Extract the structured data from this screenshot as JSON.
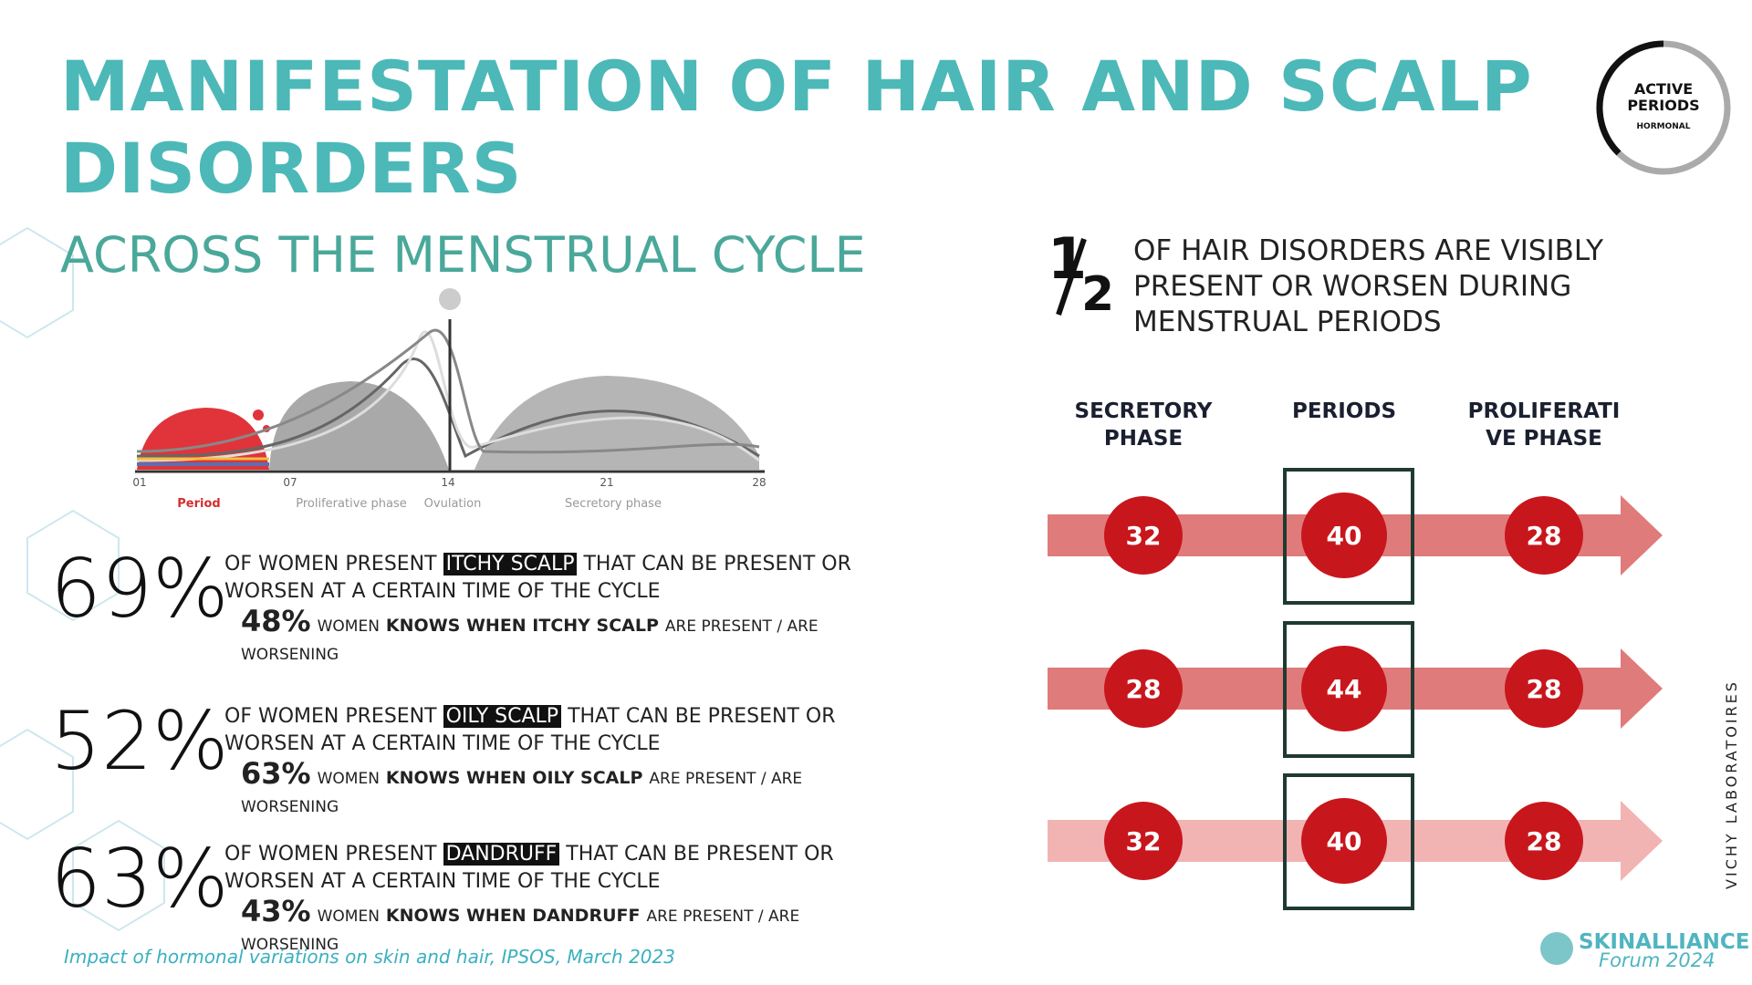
{
  "title": [
    "MANIFESTATION OF HAIR AND SCALP",
    "DISORDERS"
  ],
  "subtitle": "ACROSS THE MENSTRUAL CYCLE",
  "badge": [
    "ACTIVE",
    "PERIODS",
    "HORMONAL"
  ],
  "cycle": {
    "days": [
      "01",
      "07",
      "14",
      "21",
      "28"
    ],
    "phases": [
      "Period",
      "Proliferative phase",
      "Ovulation",
      "Secretory phase"
    ]
  },
  "stats": [
    {
      "percent": "69%",
      "before": "OF WOMEN PRESENT",
      "highlight": "ITCHY SCALP",
      "after": "THAT CAN BE PRESENT OR WORSEN AT A CERTAIN TIME OF THE CYCLE",
      "sub_percent": "48%",
      "sub_pre": "WOMEN",
      "sub_bold": "KNOWS WHEN ITCHY SCALP",
      "sub_post": "ARE PRESENT / ARE WORSENING"
    },
    {
      "percent": "52%",
      "before": "OF WOMEN PRESENT",
      "highlight": "OILY SCALP",
      "after": "THAT CAN BE PRESENT OR WORSEN AT A CERTAIN TIME OF THE CYCLE",
      "sub_percent": "63%",
      "sub_pre": "WOMEN",
      "sub_bold": "KNOWS WHEN OILY SCALP",
      "sub_post": "ARE PRESENT / ARE WORSENING"
    },
    {
      "percent": "63%",
      "before": "OF WOMEN PRESENT",
      "highlight": "DANDRUFF",
      "after": "THAT CAN BE PRESENT OR WORSEN AT A CERTAIN TIME OF THE CYCLE",
      "sub_percent": "43%",
      "sub_pre": "WOMEN",
      "sub_bold": "KNOWS WHEN DANDRUFF",
      "sub_post": "ARE PRESENT / ARE WORSENING"
    }
  ],
  "fraction": {
    "numerator": "1",
    "denominator": "2",
    "text": [
      "OF HAIR DISORDERS ARE VISIBLY",
      "PRESENT OR WORSEN DURING",
      "MENSTRUAL PERIODS"
    ]
  },
  "phase_headers": [
    [
      "SECRETORY",
      "PHASE"
    ],
    [
      "PERIODS"
    ],
    [
      "PROLIFERATI",
      "VE PHASE"
    ]
  ],
  "rows": [
    [
      32,
      40,
      28
    ],
    [
      28,
      44,
      28
    ],
    [
      32,
      40,
      28
    ]
  ],
  "source": "Impact of hormonal variations on skin and hair, IPSOS, March 2023",
  "brand": {
    "name": "SKINALLIANCE",
    "event": "Forum 2024"
  },
  "side_text": "VICHY LABORATOIRES"
}
